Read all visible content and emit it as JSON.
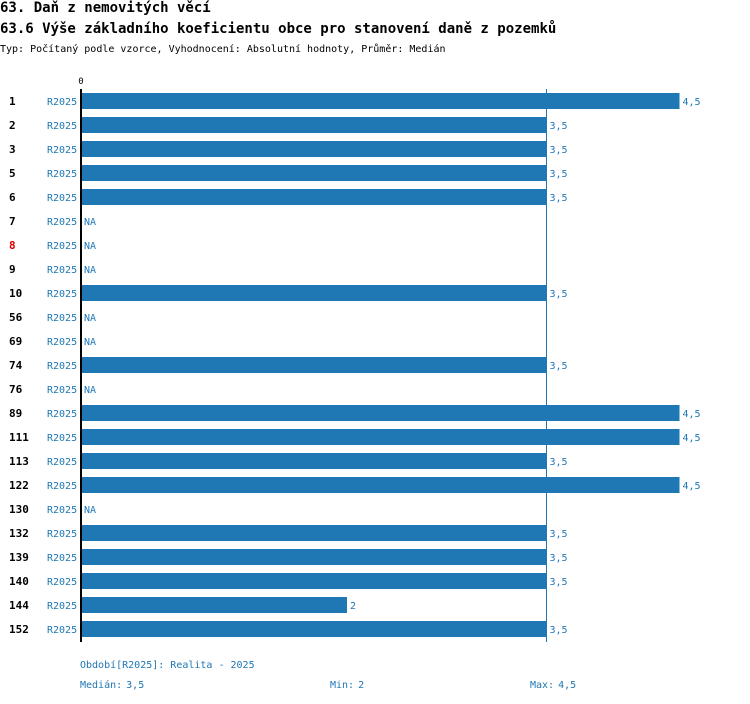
{
  "header": {
    "title": "63. Daň z nemovitých věcí",
    "subtitle": "63.6 Výše základního koeficientu obce pro stanovení daně z pozemků",
    "info": "Typ: Počítaný podle vzorce, Vyhodnocení: Absolutní hodnoty, Průměr: Medián"
  },
  "chart_data": {
    "type": "bar",
    "orientation": "horizontal",
    "axis_zero_label": "0",
    "period_code": "R2025",
    "categories": [
      "1",
      "2",
      "3",
      "5",
      "6",
      "7",
      "8",
      "9",
      "10",
      "56",
      "69",
      "74",
      "76",
      "89",
      "111",
      "113",
      "122",
      "130",
      "132",
      "139",
      "140",
      "144",
      "152"
    ],
    "values": [
      4.5,
      3.5,
      3.5,
      3.5,
      3.5,
      null,
      null,
      null,
      3.5,
      null,
      null,
      3.5,
      null,
      4.5,
      4.5,
      3.5,
      4.5,
      null,
      3.5,
      3.5,
      3.5,
      2,
      3.5
    ],
    "value_labels": [
      "4,5",
      "3,5",
      "3,5",
      "3,5",
      "3,5",
      "NA",
      "NA",
      "NA",
      "3,5",
      "NA",
      "NA",
      "3,5",
      "NA",
      "4,5",
      "4,5",
      "3,5",
      "4,5",
      "NA",
      "3,5",
      "3,5",
      "3,5",
      "2",
      "3,5"
    ],
    "highlighted_categories": [
      "8"
    ],
    "median_line": 3.5,
    "xlim": [
      0,
      4.5
    ],
    "colors": {
      "bar": "#1f77b4",
      "label": "#1f77b4",
      "axis": "#000000",
      "highlight": "#dd0000"
    }
  },
  "footer": {
    "period_text": "Období[R2025]: Realita - 2025",
    "median_label": "Medián:",
    "median_value": "3,5",
    "min_label": "Min:",
    "min_value": "2",
    "max_label": "Max:",
    "max_value": "4,5"
  }
}
